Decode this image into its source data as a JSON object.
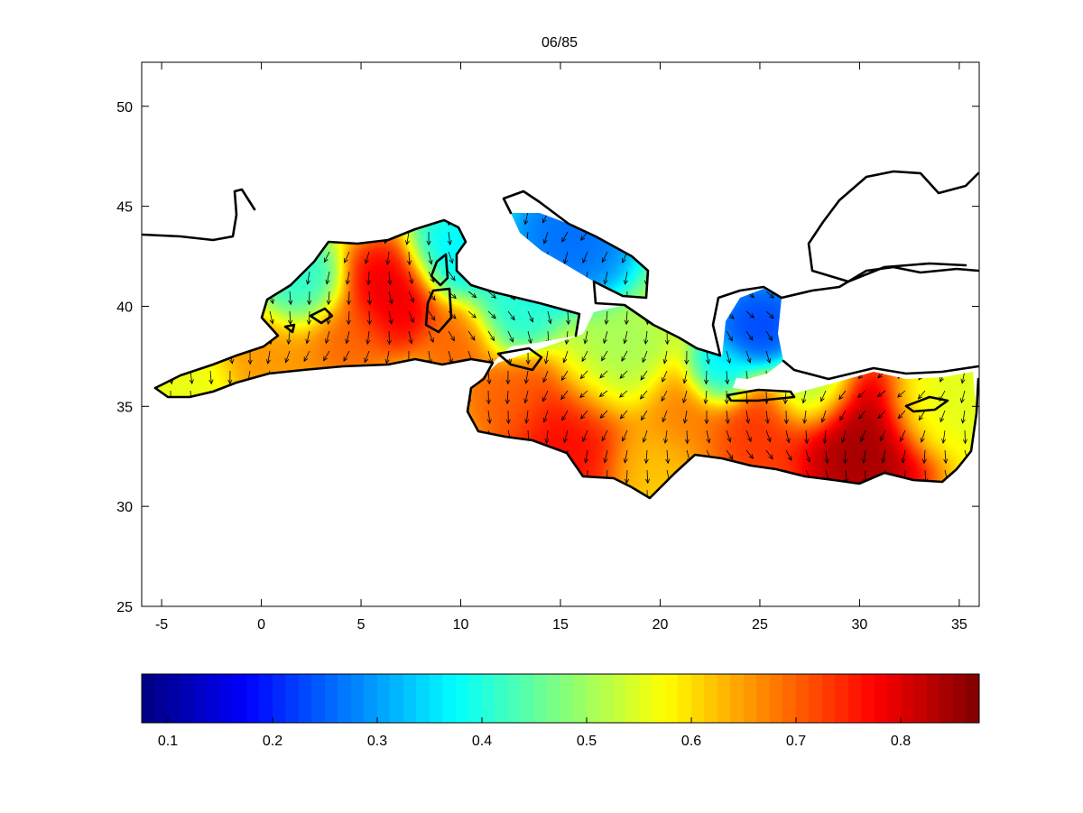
{
  "title": "06/85",
  "map": {
    "lon_range": [
      -6,
      36
    ],
    "lat_range": [
      25,
      52.2
    ],
    "lon_ticks": [
      -5,
      0,
      5,
      10,
      15,
      20,
      25,
      30,
      35
    ],
    "lat_ticks": [
      25,
      30,
      35,
      40,
      45,
      50
    ],
    "colormap": "jet",
    "vectors": "arrow field over sea surface",
    "blobs": [
      {
        "lon": 6.5,
        "lat": 40.6,
        "sigma": 1.8,
        "value": 0.8
      },
      {
        "lon": 4.0,
        "lat": 38.6,
        "sigma": 1.6,
        "value": 0.7
      },
      {
        "lon": 0.5,
        "lat": 37.4,
        "sigma": 2.0,
        "value": 0.66
      },
      {
        "lon": -3.5,
        "lat": 36.0,
        "sigma": 1.6,
        "value": 0.56
      },
      {
        "lon": 10.0,
        "lat": 38.3,
        "sigma": 1.4,
        "value": 0.7
      },
      {
        "lon": 2.0,
        "lat": 40.8,
        "sigma": 1.5,
        "value": 0.4
      },
      {
        "lon": 9.5,
        "lat": 42.5,
        "sigma": 1.5,
        "value": 0.36
      },
      {
        "lon": 12.5,
        "lat": 39.8,
        "sigma": 1.6,
        "value": 0.4
      },
      {
        "lon": 15.5,
        "lat": 33.8,
        "sigma": 2.4,
        "value": 0.78
      },
      {
        "lon": 12.5,
        "lat": 35.5,
        "sigma": 1.6,
        "value": 0.7
      },
      {
        "lon": 17.5,
        "lat": 36.8,
        "sigma": 2.0,
        "value": 0.5
      },
      {
        "lon": 19.5,
        "lat": 32.5,
        "sigma": 1.6,
        "value": 0.62
      },
      {
        "lon": 21.0,
        "lat": 34.5,
        "sigma": 1.8,
        "value": 0.68
      },
      {
        "lon": 25.0,
        "lat": 33.8,
        "sigma": 2.0,
        "value": 0.74
      },
      {
        "lon": 30.0,
        "lat": 33.2,
        "sigma": 2.4,
        "value": 0.86
      },
      {
        "lon": 33.5,
        "lat": 34.8,
        "sigma": 1.6,
        "value": 0.55
      },
      {
        "lon": 27.5,
        "lat": 35.8,
        "sigma": 1.5,
        "value": 0.48
      },
      {
        "lon": 23.0,
        "lat": 36.6,
        "sigma": 1.2,
        "value": 0.35
      },
      {
        "lon": 15.5,
        "lat": 43.5,
        "sigma": 2.2,
        "value": 0.25
      },
      {
        "lon": 25.0,
        "lat": 39.0,
        "sigma": 1.6,
        "value": 0.22
      }
    ],
    "background_value": 0.55
  },
  "colorbar": {
    "min": 0.075,
    "max": 0.875,
    "ticks": [
      "0.1",
      "0.2",
      "0.3",
      "0.4",
      "0.5",
      "0.6",
      "0.7",
      "0.8"
    ],
    "tick_values": [
      0.1,
      0.2,
      0.3,
      0.4,
      0.5,
      0.6,
      0.7,
      0.8
    ]
  }
}
